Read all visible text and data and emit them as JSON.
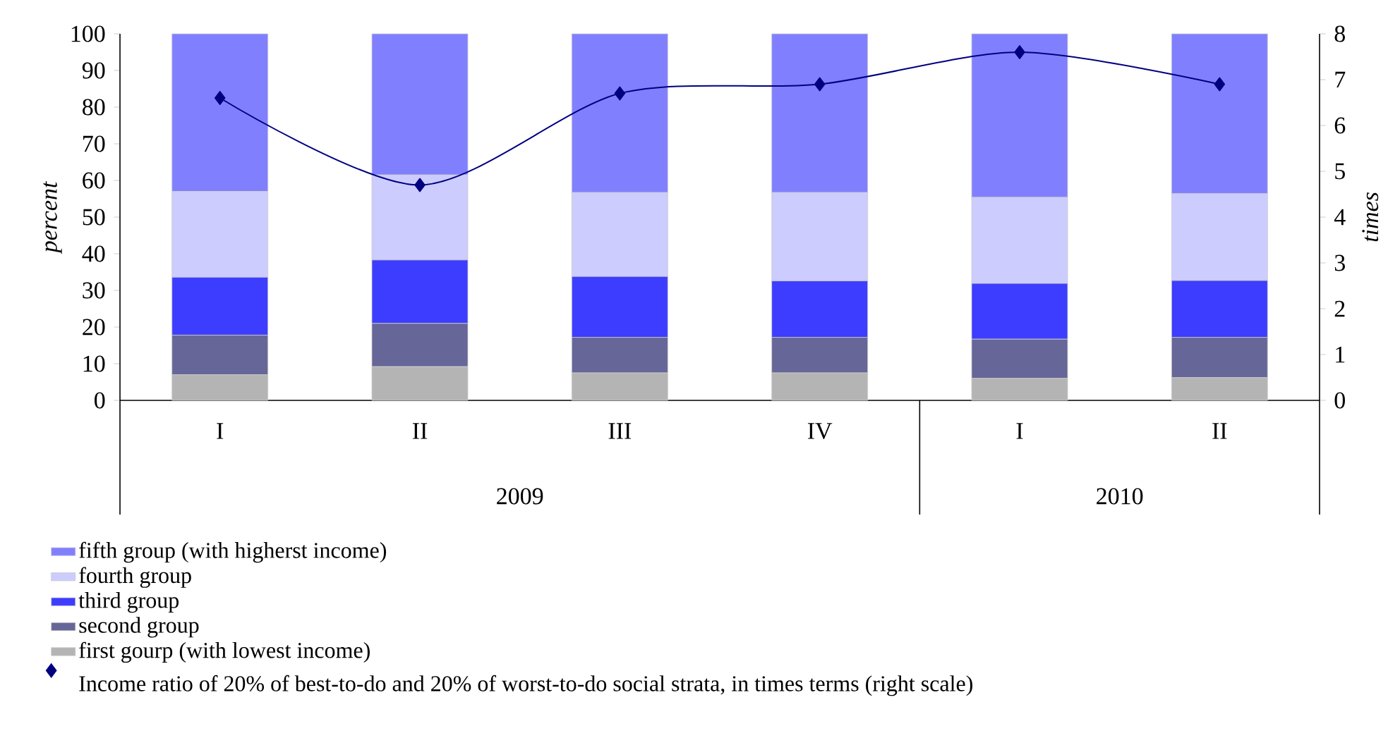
{
  "chart_data": {
    "type": "bar",
    "stacked": true,
    "ylabel": "percent",
    "y2label": "times",
    "categories": [
      "I",
      "II",
      "III",
      "IV",
      "I",
      "II"
    ],
    "series": [
      {
        "name": "first gourp  (with lowest income)",
        "color": "#b4b4b4",
        "values": [
          7,
          9.2,
          7.5,
          7.5,
          6,
          6.2
        ]
      },
      {
        "name": "second group",
        "color": "#666699",
        "values": [
          10.8,
          11.8,
          9.7,
          9.7,
          10.7,
          11
        ]
      },
      {
        "name": "third group",
        "color": "#3d3dff",
        "values": [
          15.8,
          17.3,
          16.6,
          15.4,
          15.2,
          15.5
        ]
      },
      {
        "name": "fourth group",
        "color": "#ccccff",
        "values": [
          23.4,
          23.2,
          22.9,
          24.1,
          23.5,
          23.7
        ]
      },
      {
        "name": "fifth group (with higherst income)",
        "color": "#8080ff",
        "values": [
          43,
          38.5,
          43.3,
          43.3,
          44.6,
          43.6
        ]
      },
      {
        "name": "Income ratio of 20% of best-to-do and 20% of worst-to-do social strata, in times terms (right scale)",
        "type": "line",
        "axis": "y2",
        "color": "#000080",
        "marker": "diamond",
        "values": [
          6.6,
          4.7,
          6.7,
          6.9,
          7.6,
          6.9
        ]
      }
    ],
    "ylim": [
      0,
      100
    ],
    "yticks": [
      0,
      10,
      20,
      30,
      40,
      50,
      60,
      70,
      80,
      90,
      100
    ],
    "y2lim": [
      0,
      8
    ],
    "y2ticks": [
      0,
      1,
      2,
      3,
      4,
      5,
      6,
      7,
      8
    ],
    "legend": "bottom",
    "annotations": [
      "2009",
      "2010"
    ]
  }
}
